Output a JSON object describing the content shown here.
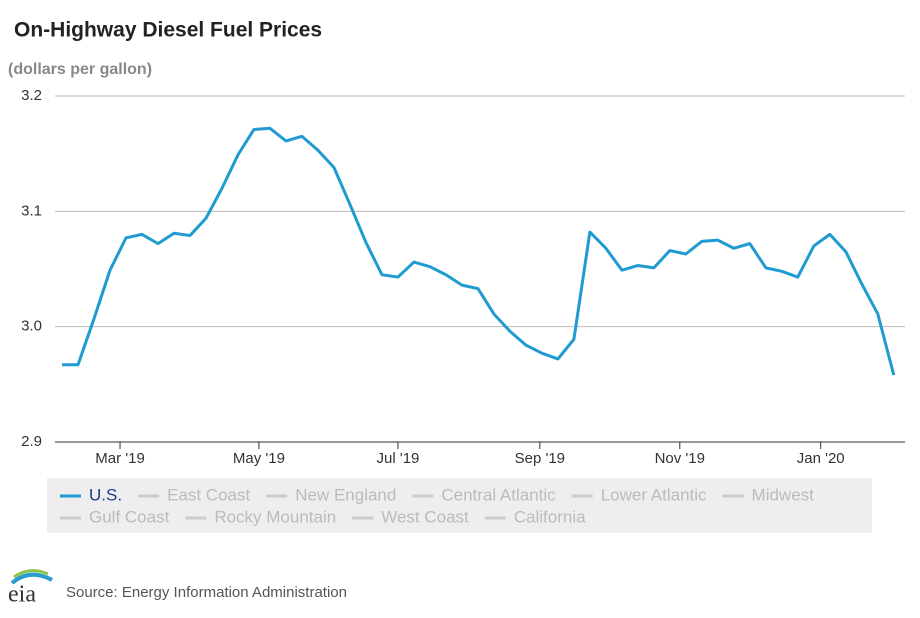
{
  "chart_data": {
    "type": "line",
    "title": "On-Highway Diesel Fuel Prices",
    "subtitle": "(dollars per gallon)",
    "x": [
      0,
      1,
      2,
      3,
      4,
      5,
      6,
      7,
      8,
      9,
      10,
      11,
      12,
      13,
      14,
      15,
      16,
      17,
      18,
      19,
      20,
      21,
      22,
      23,
      24,
      25,
      26,
      27,
      28,
      29,
      30,
      31,
      32,
      33,
      34,
      35,
      36,
      37,
      38,
      39,
      40,
      41,
      42,
      43,
      44,
      45,
      46,
      47,
      48,
      49,
      50,
      51,
      52
    ],
    "series": [
      {
        "name": "U.S.",
        "color": "#1f9bd1",
        "values": [
          2.967,
          2.967,
          3.007,
          3.049,
          3.077,
          3.08,
          3.072,
          3.081,
          3.079,
          3.094,
          3.12,
          3.149,
          3.171,
          3.172,
          3.161,
          3.165,
          3.153,
          3.138,
          3.106,
          3.073,
          3.045,
          3.043,
          3.056,
          3.052,
          3.045,
          3.036,
          3.033,
          3.011,
          2.996,
          2.984,
          2.977,
          2.972,
          2.989,
          3.082,
          3.068,
          3.049,
          3.053,
          3.051,
          3.066,
          3.063,
          3.074,
          3.075,
          3.068,
          3.072,
          3.051,
          3.048,
          3.043,
          3.07,
          3.08,
          3.065,
          3.037,
          3.011,
          2.958
        ]
      }
    ],
    "hidden_series": [
      "East Coast",
      "New England",
      "Central Atlantic",
      "Lower Atlantic",
      "Midwest",
      "Gulf Coast",
      "Rocky Mountain",
      "West Coast",
      "California"
    ],
    "xlim": [
      -0.44,
      52.7
    ],
    "xticks": [
      {
        "value": 3.625,
        "label": "Mar '19"
      },
      {
        "value": 12.31,
        "label": "May '19"
      },
      {
        "value": 21,
        "label": "Jul '19"
      },
      {
        "value": 29.87,
        "label": "Sep '19"
      },
      {
        "value": 38.62,
        "label": "Nov '19"
      },
      {
        "value": 47.43,
        "label": "Jan '20"
      }
    ],
    "ylim": [
      2.9,
      3.2
    ],
    "yticks": [
      {
        "value": 2.9,
        "label": "2.9"
      },
      {
        "value": 3.0,
        "label": "3.0"
      },
      {
        "value": 3.1,
        "label": "3.1"
      },
      {
        "value": 3.2,
        "label": "3.2"
      }
    ],
    "grid": true
  },
  "footer": {
    "logo": "eia",
    "source": "Source: Energy Information Administration"
  }
}
